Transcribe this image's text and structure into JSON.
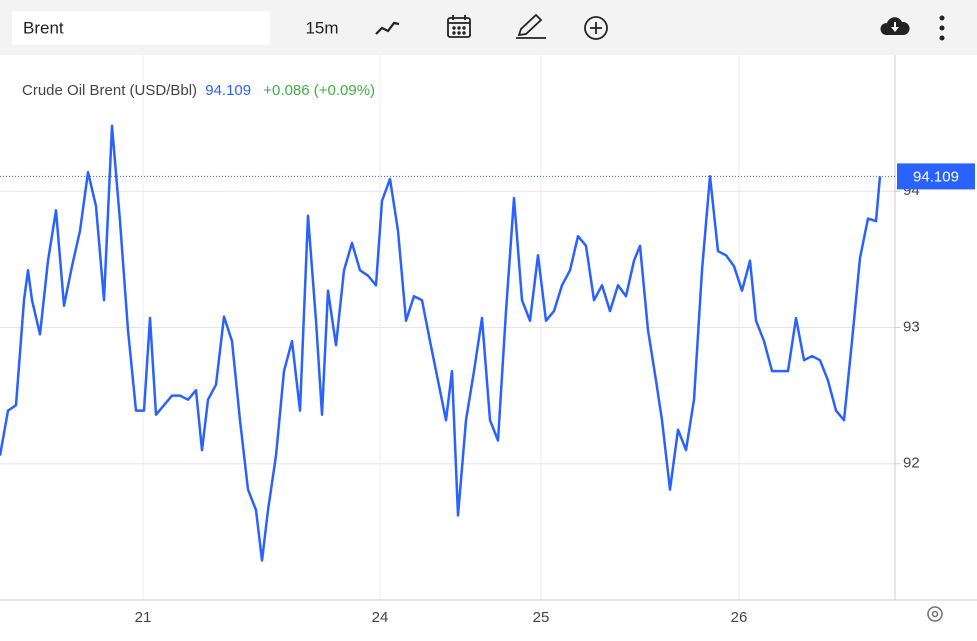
{
  "toolbar": {
    "search": "Brent",
    "interval": "15m"
  },
  "chart_data": {
    "type": "line",
    "series": [
      {
        "name": "Crude Oil Brent (USD/Bbl)",
        "color": "#2962ff",
        "values": [
          92.06,
          92.39,
          92.43,
          93.2,
          93.42,
          93.2,
          92.95,
          93.49,
          93.86,
          93.16,
          93.45,
          93.71,
          94.14,
          93.89,
          93.2,
          94.48,
          93.78,
          92.98,
          92.39,
          92.39,
          93.07,
          92.36,
          92.43,
          92.5,
          92.5,
          92.47,
          92.54,
          92.1,
          92.47,
          92.58,
          93.08,
          92.9,
          92.32,
          91.81,
          91.66,
          91.29,
          91.66,
          92.06,
          92.68,
          92.9,
          92.39,
          93.82,
          93.05,
          92.36,
          93.27,
          92.87,
          93.42,
          93.62,
          93.42,
          93.38,
          93.31,
          93.93,
          94.09,
          93.71,
          93.05,
          93.23,
          93.2,
          92.9,
          92.61,
          92.32,
          92.68,
          91.62,
          92.32,
          92.68,
          93.07,
          92.32,
          92.17,
          93.12,
          93.95,
          93.2,
          93.05,
          93.53,
          93.05,
          93.12,
          93.31,
          93.42,
          93.67,
          93.6,
          93.2,
          93.31,
          93.12,
          93.31,
          93.23,
          93.49,
          93.6,
          92.98,
          92.61,
          92.32,
          91.81,
          92.25,
          92.1,
          92.47,
          93.42,
          94.11,
          93.56,
          93.53,
          93.45,
          93.27,
          93.49,
          93.05,
          92.9,
          92.68,
          92.68,
          92.68,
          93.07,
          92.76,
          92.79,
          92.76,
          92.61,
          92.39,
          92.32,
          92.9,
          93.51,
          93.8,
          93.78,
          94.109
        ]
      }
    ],
    "x": [
      0,
      8,
      16,
      24,
      28,
      32,
      40,
      48,
      56,
      64,
      72,
      80,
      88,
      96,
      104,
      112,
      120,
      128,
      136,
      144,
      150,
      156,
      164,
      172,
      180,
      188,
      196,
      202,
      208,
      216,
      224,
      232,
      240,
      248,
      256,
      262,
      268,
      276,
      284,
      292,
      300,
      308,
      316,
      322,
      328,
      336,
      344,
      352,
      360,
      368,
      376,
      382,
      390,
      398,
      406,
      414,
      422,
      430,
      438,
      446,
      452,
      458,
      466,
      474,
      482,
      490,
      498,
      506,
      514,
      522,
      530,
      538,
      546,
      554,
      562,
      570,
      578,
      586,
      594,
      602,
      610,
      618,
      626,
      634,
      640,
      648,
      656,
      662,
      670,
      678,
      686,
      694,
      702,
      710,
      718,
      726,
      734,
      742,
      750,
      756,
      764,
      772,
      780,
      788,
      796,
      804,
      812,
      820,
      828,
      836,
      844,
      852,
      860,
      868,
      876,
      880
    ],
    "xlim": [
      0,
      895
    ],
    "xticks": [
      {
        "value": 143,
        "label": "21"
      },
      {
        "value": 380,
        "label": "24"
      },
      {
        "value": 541,
        "label": "25"
      },
      {
        "value": 739,
        "label": "26"
      }
    ],
    "ylim": [
      91,
      95
    ],
    "yticks": [
      92,
      93,
      94
    ],
    "grid": true,
    "last_price": 94.109,
    "change_label": "+0.086 (+0.09%)"
  }
}
